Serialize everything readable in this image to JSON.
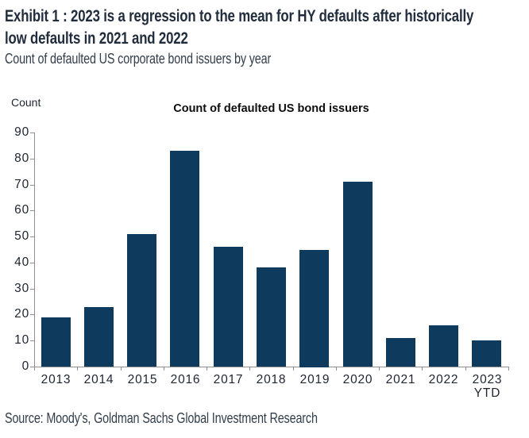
{
  "header": {
    "title_lines": [
      "Exhibit 1 : 2023 is a regression to the mean for HY defaults after historically",
      "low defaults in 2021 and 2022"
    ],
    "subtitle": "Count of defaulted US corporate bond issuers by year"
  },
  "chart_data": {
    "type": "bar",
    "title": "Count of defaulted US bond issuers",
    "ylabel": "Count",
    "xlabel": "",
    "categories": [
      "2013",
      "2014",
      "2015",
      "2016",
      "2017",
      "2018",
      "2019",
      "2020",
      "2021",
      "2022",
      "2023\nYTD"
    ],
    "values": [
      19,
      23,
      51,
      83,
      46,
      38,
      45,
      71,
      11,
      16,
      10
    ],
    "ylim": [
      0,
      90
    ],
    "ytick_step": 10,
    "grid": false,
    "legend": "none",
    "bar_color": "#0e3a5e",
    "axis_color": "#8f8f8f",
    "text_color": "#1e2430"
  },
  "footer": {
    "source": "Source: Moody's, Goldman Sachs Global Investment Research"
  }
}
